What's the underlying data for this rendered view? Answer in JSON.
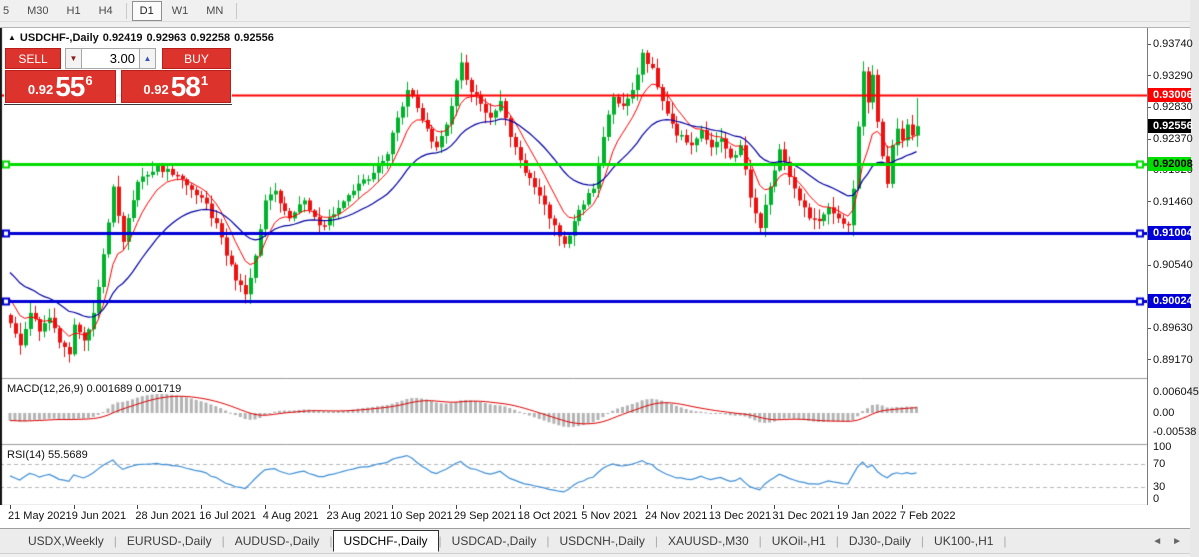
{
  "toolbar": {
    "timeframe_groups": [
      [
        "5",
        "M30",
        "H1",
        "H4"
      ],
      [
        "D1",
        "W1",
        "MN"
      ]
    ],
    "active_timeframe": "D1"
  },
  "title": {
    "collapse_icon": "▲",
    "symbol": "USDCHF-,Daily",
    "open": "0.92419",
    "high": "0.92963",
    "low": "0.92258",
    "close": "0.92556"
  },
  "trade_panel": {
    "sell_label": "SELL",
    "buy_label": "BUY",
    "volume": "3.00",
    "spinner_down_icon": "▼",
    "spinner_up_icon": "▲",
    "sell_price": {
      "prefix": "0.92",
      "big": "55",
      "sup": "6"
    },
    "buy_price": {
      "prefix": "0.92",
      "big": "58",
      "sup": "1"
    }
  },
  "price_axis": {
    "grid_labels": [
      "0.93740",
      "0.93290",
      "0.92830",
      "0.92370",
      "0.91920",
      "0.91460",
      "0.90540",
      "0.89630",
      "0.89170"
    ],
    "badges": [
      {
        "text": "0.93006",
        "bg": "#ff0000",
        "fg": "#ffffff"
      },
      {
        "text": "0.92556",
        "bg": "#000000",
        "fg": "#ffffff"
      },
      {
        "text": "0.92008",
        "bg": "#00df00",
        "fg": "#000000"
      },
      {
        "text": "0.91004",
        "bg": "#0000d6",
        "fg": "#ffffff"
      },
      {
        "text": "0.90024",
        "bg": "#0000d6",
        "fg": "#ffffff"
      }
    ]
  },
  "macd_panel": {
    "label": "MACD(12,26,9) 0.001689 0.001719",
    "ticks": [
      "0.006045",
      "0.00",
      "-0.00538"
    ]
  },
  "rsi_panel": {
    "label": "RSI(14) 55.5689",
    "ticks": [
      "100",
      "70",
      "30",
      "0"
    ],
    "levels": [
      70,
      30
    ]
  },
  "date_axis": [
    "21 May 2021",
    "9 Jun 2021",
    "28 Jun 2021",
    "16 Jul 2021",
    "4 Aug 2021",
    "23 Aug 2021",
    "10 Sep 2021",
    "29 Sep 2021",
    "18 Oct 2021",
    "5 Nov 2021",
    "24 Nov 2021",
    "13 Dec 2021",
    "31 Dec 2021",
    "19 Jan 2022",
    "7 Feb 2022"
  ],
  "tabs": {
    "items": [
      "USDX,Weekly",
      "EURUSD-,Daily",
      "AUDUSD-,Daily",
      "USDCHF-,Daily",
      "USDCAD-,Daily",
      "USDCNH-,Daily",
      "XAUUSD-,M30",
      "UKOil-,H1",
      "DJ30-,Daily",
      "UK100-,H1"
    ],
    "active": "USDCHF-,Daily",
    "scroll_left_icon": "◄",
    "scroll_right_icon": "►"
  },
  "chart_data": {
    "type": "candlestick",
    "symbol": "USDCHF",
    "timeframe": "Daily",
    "candles_total": 186,
    "first_open": 0.8982,
    "current_candle": {
      "open": 0.92419,
      "high": 0.92963,
      "low": 0.92258,
      "close": 0.92556
    },
    "close_keypoints": [
      [
        0,
        0.897
      ],
      [
        2,
        0.8938
      ],
      [
        4,
        0.8985
      ],
      [
        6,
        0.8958
      ],
      [
        8,
        0.8978
      ],
      [
        10,
        0.8942
      ],
      [
        12,
        0.8925
      ],
      [
        13,
        0.8968
      ],
      [
        15,
        0.8945
      ],
      [
        17,
        0.8985
      ],
      [
        19,
        0.907
      ],
      [
        21,
        0.9168
      ],
      [
        23,
        0.9088
      ],
      [
        26,
        0.9175
      ],
      [
        30,
        0.9198
      ],
      [
        33,
        0.9185
      ],
      [
        36,
        0.917
      ],
      [
        39,
        0.9152
      ],
      [
        42,
        0.9115
      ],
      [
        44,
        0.9068
      ],
      [
        46,
        0.9032
      ],
      [
        48,
        0.9012
      ],
      [
        50,
        0.9068
      ],
      [
        52,
        0.9148
      ],
      [
        54,
        0.9162
      ],
      [
        57,
        0.9122
      ],
      [
        60,
        0.9148
      ],
      [
        63,
        0.9112
      ],
      [
        66,
        0.9128
      ],
      [
        70,
        0.9162
      ],
      [
        74,
        0.9188
      ],
      [
        77,
        0.9215
      ],
      [
        79,
        0.9268
      ],
      [
        81,
        0.9308
      ],
      [
        83,
        0.9282
      ],
      [
        85,
        0.9252
      ],
      [
        87,
        0.9225
      ],
      [
        89,
        0.9258
      ],
      [
        91,
        0.9322
      ],
      [
        92,
        0.9348
      ],
      [
        94,
        0.9305
      ],
      [
        96,
        0.9288
      ],
      [
        98,
        0.9268
      ],
      [
        100,
        0.9292
      ],
      [
        102,
        0.924
      ],
      [
        105,
        0.9188
      ],
      [
        108,
        0.9155
      ],
      [
        111,
        0.9112
      ],
      [
        113,
        0.9085
      ],
      [
        115,
        0.9118
      ],
      [
        117,
        0.9142
      ],
      [
        119,
        0.9165
      ],
      [
        121,
        0.924
      ],
      [
        123,
        0.9298
      ],
      [
        125,
        0.9285
      ],
      [
        127,
        0.9308
      ],
      [
        129,
        0.9362
      ],
      [
        131,
        0.934
      ],
      [
        133,
        0.9292
      ],
      [
        136,
        0.9242
      ],
      [
        139,
        0.9228
      ],
      [
        141,
        0.925
      ],
      [
        143,
        0.9225
      ],
      [
        145,
        0.9238
      ],
      [
        147,
        0.921
      ],
      [
        149,
        0.9228
      ],
      [
        151,
        0.9152
      ],
      [
        153,
        0.9108
      ],
      [
        155,
        0.9168
      ],
      [
        157,
        0.9222
      ],
      [
        159,
        0.9182
      ],
      [
        161,
        0.9148
      ],
      [
        163,
        0.9122
      ],
      [
        165,
        0.9118
      ],
      [
        167,
        0.9138
      ],
      [
        169,
        0.9122
      ],
      [
        171,
        0.9112
      ],
      [
        172,
        0.9165
      ],
      [
        173,
        0.9255
      ],
      [
        174,
        0.9335
      ],
      [
        175,
        0.929
      ],
      [
        176,
        0.933
      ],
      [
        177,
        0.9262
      ],
      [
        178,
        0.9212
      ],
      [
        179,
        0.9172
      ],
      [
        180,
        0.9228
      ],
      [
        181,
        0.9252
      ],
      [
        182,
        0.9235
      ],
      [
        183,
        0.9258
      ],
      [
        184,
        0.9242
      ],
      [
        185,
        0.92556
      ]
    ],
    "hlines": [
      {
        "price": 0.93006,
        "color": "#ff0000",
        "width": 2,
        "markers": false
      },
      {
        "price": 0.92008,
        "color": "#00dc00",
        "width": 3,
        "markers": true
      },
      {
        "price": 0.91004,
        "color": "#0000d6",
        "width": 3,
        "markers": true
      },
      {
        "price": 0.90024,
        "color": "#0000d6",
        "width": 3,
        "markers": true
      }
    ],
    "colors": {
      "bull": "#00b22c",
      "bear": "#ee1111",
      "ma_fast": "#ff0000",
      "ma_slow": "#0000a0",
      "macd_hist": "#b4b4b4",
      "macd_signal": "#dd0000",
      "rsi": "#3f8fd6",
      "rsi_level": "#b8b8b8"
    },
    "ma_fast_period": 8,
    "ma_slow_period": 24,
    "macd": {
      "fast": 12,
      "slow": 26,
      "signal": 9,
      "last_macd": 0.001689,
      "last_signal": 0.001719
    },
    "rsi": {
      "period": 14,
      "last": 55.5689
    }
  }
}
